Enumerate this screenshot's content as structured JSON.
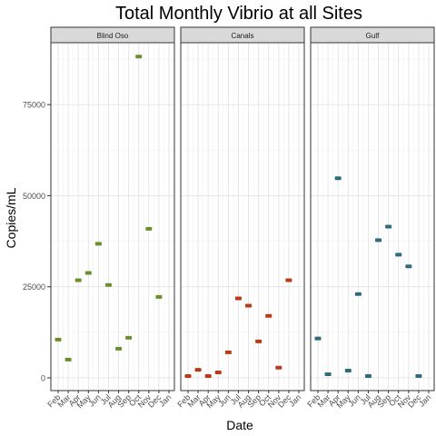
{
  "chart_data": {
    "type": "scatter",
    "title": "Total Monthly Vibrio at all Sites",
    "xlabel": "Date",
    "ylabel": "Copies/mL",
    "x_ticks": [
      "Feb",
      "Mar",
      "Apr",
      "May",
      "Jun",
      "Jul",
      "Aug",
      "Sep",
      "Oct",
      "Nov",
      "Dec",
      "Jan"
    ],
    "y_ticks": [
      0,
      25000,
      50000,
      75000
    ],
    "y_tick_labels": [
      "0",
      "25000",
      "50000",
      "75000"
    ],
    "ylim": [
      -3500,
      92000
    ],
    "grid": true,
    "panels": [
      {
        "name": "Blind Oso",
        "color": "#6b8e2e",
        "points": [
          {
            "x": "Feb",
            "y": 10500
          },
          {
            "x": "Mar",
            "y": 5000
          },
          {
            "x": "Apr",
            "y": 26800
          },
          {
            "x": "May",
            "y": 28800
          },
          {
            "x": "Jun",
            "y": 36800
          },
          {
            "x": "Jul",
            "y": 25500
          },
          {
            "x": "Aug",
            "y": 8000
          },
          {
            "x": "Sep",
            "y": 11000
          },
          {
            "x": "Oct",
            "y": 88200
          },
          {
            "x": "Nov",
            "y": 40900
          },
          {
            "x": "Dec",
            "y": 22200
          }
        ]
      },
      {
        "name": "Canals",
        "color": "#b83a1a",
        "points": [
          {
            "x": "Feb",
            "y": 500
          },
          {
            "x": "Mar",
            "y": 2200
          },
          {
            "x": "Apr",
            "y": 500
          },
          {
            "x": "May",
            "y": 1500
          },
          {
            "x": "Jun",
            "y": 7000
          },
          {
            "x": "Jul",
            "y": 21800
          },
          {
            "x": "Aug",
            "y": 19800
          },
          {
            "x": "Sep",
            "y": 10000
          },
          {
            "x": "Oct",
            "y": 17000
          },
          {
            "x": "Nov",
            "y": 2800
          },
          {
            "x": "Dec",
            "y": 26800
          }
        ]
      },
      {
        "name": "Gulf",
        "color": "#2f6b78",
        "points": [
          {
            "x": "Feb",
            "y": 10800
          },
          {
            "x": "Mar",
            "y": 1000
          },
          {
            "x": "Apr",
            "y": 54800
          },
          {
            "x": "May",
            "y": 2000
          },
          {
            "x": "Jun",
            "y": 23000
          },
          {
            "x": "Jul",
            "y": 500
          },
          {
            "x": "Aug",
            "y": 37800
          },
          {
            "x": "Sep",
            "y": 41500
          },
          {
            "x": "Oct",
            "y": 33800
          },
          {
            "x": "Nov",
            "y": 30600
          },
          {
            "x": "Dec",
            "y": 500
          }
        ]
      }
    ]
  }
}
